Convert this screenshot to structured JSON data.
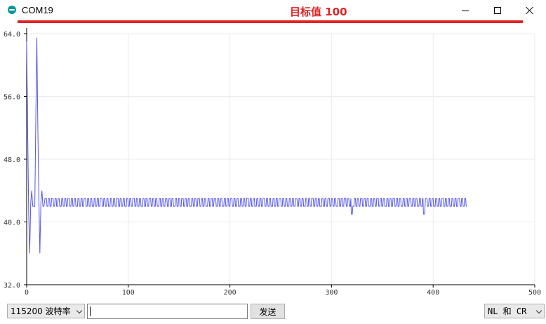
{
  "window": {
    "title": "COM19",
    "annotation": "目标值 100",
    "annotation_color": "#e02424"
  },
  "plotter": {
    "line_color": "#5555ee",
    "grid_color": "#ebebeb",
    "y_ticks": [
      "64.0",
      "56.0",
      "48.0",
      "40.0",
      "32.0"
    ],
    "x_ticks": [
      "0",
      "100",
      "200",
      "300",
      "400",
      "500"
    ]
  },
  "chart_data": {
    "type": "line",
    "xlim": [
      0,
      500
    ],
    "ylim": [
      32,
      64
    ],
    "grid": true,
    "series": [
      {
        "values": [
          63,
          52,
          41,
          36,
          42.5,
          44,
          42,
          42,
          42,
          53,
          63.5,
          52,
          43,
          36,
          42.5,
          44,
          42,
          42
        ],
        "steady": {
          "from_x": 18,
          "to_x": 433,
          "low": 42.0,
          "high": 43.0,
          "period": 3.2
        },
        "dips": [
          {
            "x": 320,
            "y": 41.0
          },
          {
            "x": 391,
            "y": 41.0
          }
        ]
      }
    ]
  },
  "bottom": {
    "baud_rate": "115200 波特率",
    "send_input_value": "",
    "send_label": "发送",
    "line_ending": "NL 和 CR"
  }
}
